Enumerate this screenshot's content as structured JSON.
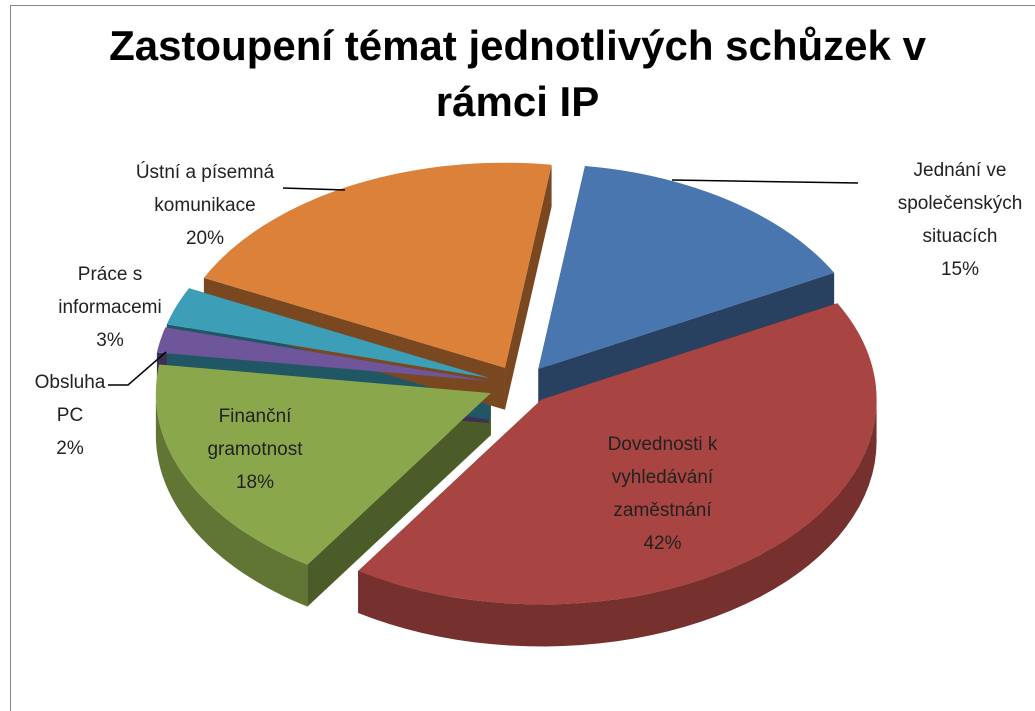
{
  "chart_data": {
    "type": "pie3d",
    "title": "Zastoupení témat jednotlivých schůzek v rámci IP",
    "categories": [
      "Jednání ve společenských situacích",
      "Dovednosti k vyhledávání zaměstnání",
      "Finanční gramotnost",
      "Obsluha PC",
      "Práce s informacemi",
      "Ústní a písemná komunikace"
    ],
    "values": [
      15,
      42,
      18,
      2,
      3,
      20
    ],
    "value_labels": [
      "15%",
      "42%",
      "18%",
      "2%",
      "3%",
      "20%"
    ],
    "colors": [
      "#4a76b0",
      "#a84442",
      "#8aa84b",
      "#6f559a",
      "#3c9fb7",
      "#dc813a"
    ]
  }
}
